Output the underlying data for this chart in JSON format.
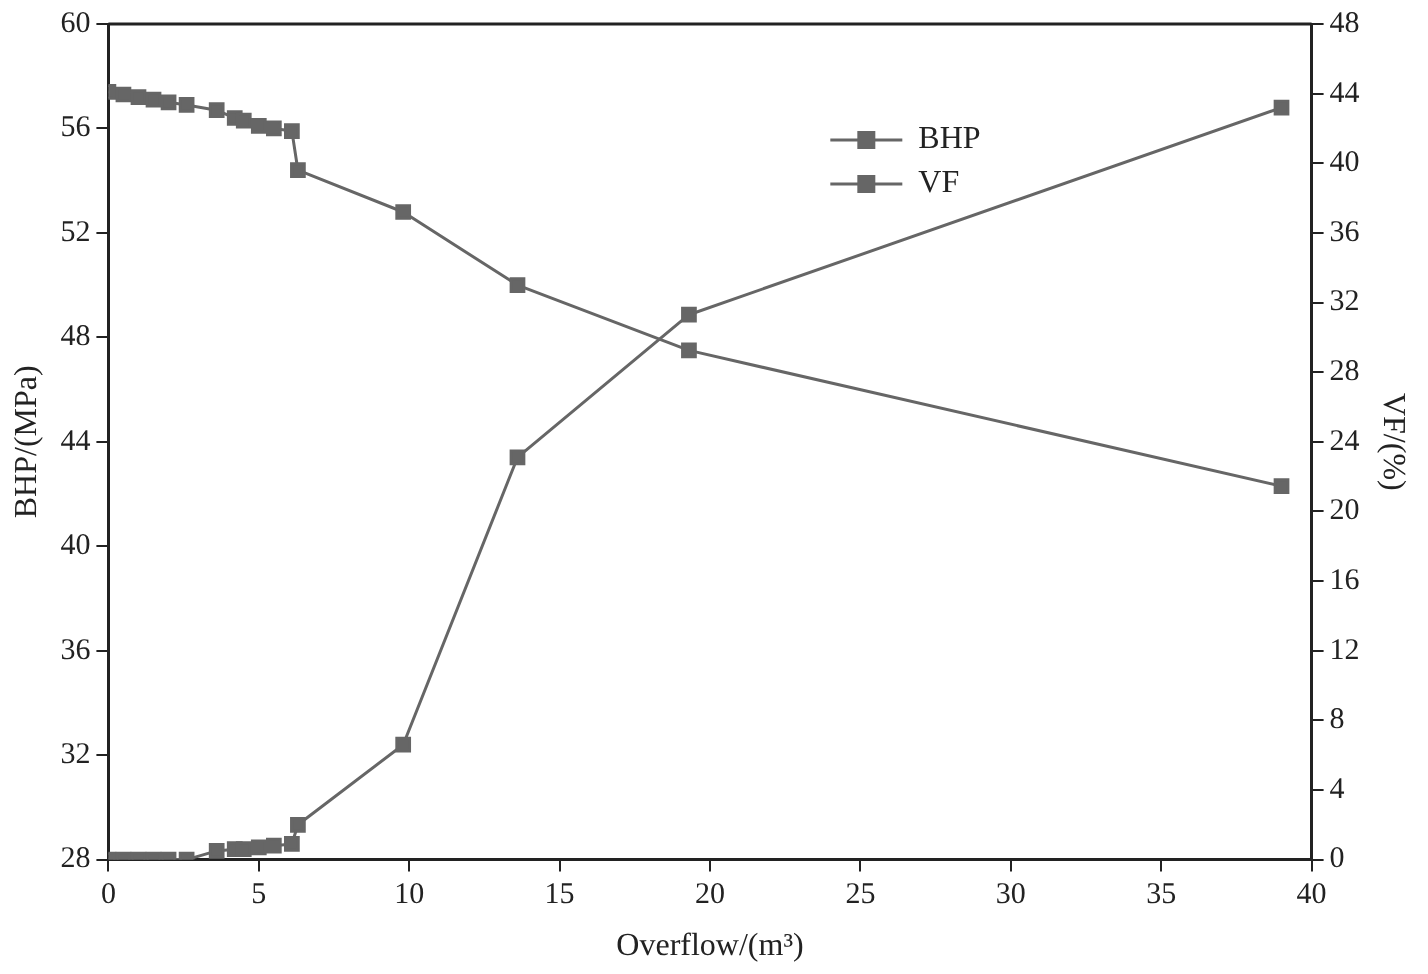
{
  "chart_data": {
    "type": "line",
    "xlabel": "Overflow/(m³)",
    "ylabel": "BHP/(MPa)",
    "y2label": "VF/(%)",
    "x": [
      0,
      0.5,
      1,
      1.5,
      2,
      2.6,
      3.6,
      4.2,
      4.5,
      5,
      5.5,
      6.1,
      6.3,
      9.8,
      13.6,
      19.3,
      39
    ],
    "series": [
      {
        "name": "BHP",
        "color": "#666666",
        "values": [
          57.4,
          57.3,
          57.2,
          57.1,
          57.0,
          56.9,
          56.7,
          56.4,
          56.3,
          56.1,
          56.0,
          55.9,
          54.4,
          52.8,
          50.0,
          47.5,
          42.3
        ]
      },
      {
        "name": "VF",
        "color": "#666666",
        "axis": "y2",
        "values": [
          0,
          0,
          0,
          0,
          0,
          0,
          0.5,
          0.6,
          0.6,
          0.7,
          0.8,
          0.9,
          2.0,
          6.6,
          23.1,
          31.3,
          43.2
        ]
      }
    ],
    "xlim": [
      0,
      40
    ],
    "xticks": [
      0,
      5,
      10,
      15,
      20,
      25,
      30,
      35,
      40
    ],
    "ylim": [
      28,
      60
    ],
    "yticks": [
      28,
      32,
      36,
      40,
      44,
      48,
      52,
      56,
      60
    ],
    "y2lim": [
      0,
      48
    ],
    "y2ticks": [
      0,
      4,
      8,
      12,
      16,
      20,
      24,
      28,
      32,
      36,
      40,
      44,
      48
    ],
    "grid": false,
    "legend": "top right",
    "marker": "square",
    "line_style": "solid"
  }
}
